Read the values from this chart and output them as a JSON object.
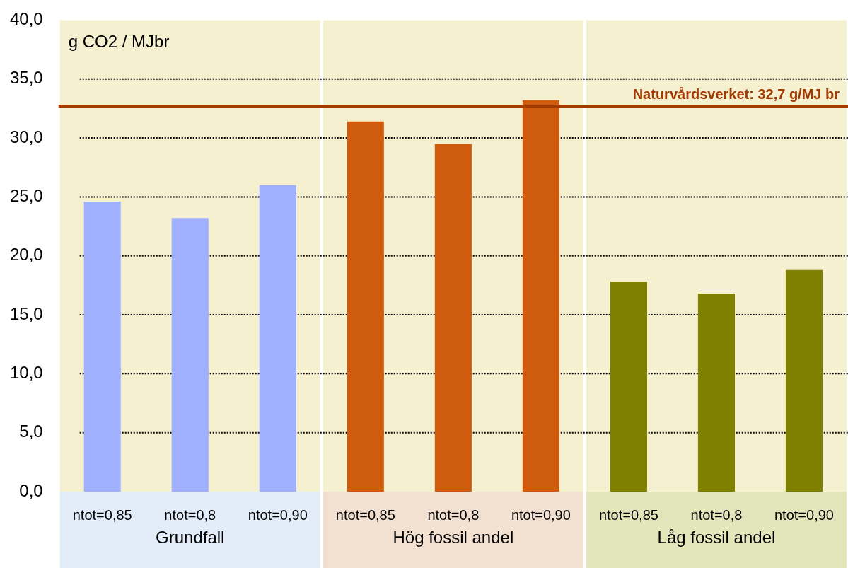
{
  "chart_data": {
    "type": "bar",
    "ylabel": "g CO2 / MJbr",
    "categories": [
      "ntot=0,85",
      "ntot=0,8",
      "ntot=0,90",
      "ntot=0,85",
      "ntot=0,8",
      "ntot=0,90",
      "ntot=0,85",
      "ntot=0,8",
      "ntot=0,90"
    ],
    "values": [
      24.6,
      23.2,
      26.0,
      31.4,
      29.5,
      33.2,
      17.8,
      16.8,
      18.8
    ],
    "colors": [
      "#a0b0ff",
      "#a0b0ff",
      "#a0b0ff",
      "#cf5c0e",
      "#cf5c0e",
      "#cf5c0e",
      "#808000",
      "#808000",
      "#808000"
    ],
    "ylim": [
      0,
      40
    ],
    "yticks": [
      {
        "value": 0,
        "label": "0,0"
      },
      {
        "value": 5,
        "label": "5,0"
      },
      {
        "value": 10,
        "label": "10,0"
      },
      {
        "value": 15,
        "label": "15,0"
      },
      {
        "value": 20,
        "label": "20,0"
      },
      {
        "value": 25,
        "label": "25,0"
      },
      {
        "value": 30,
        "label": "30,0"
      },
      {
        "value": 35,
        "label": "35,0"
      },
      {
        "value": 40,
        "label": "40,0"
      }
    ],
    "grid": "y",
    "ref_lines": [
      {
        "axis": "y",
        "value": 32.7,
        "label": "Naturvårdsverket: 32,7 g/MJ br",
        "color": "#a33a00"
      }
    ],
    "annotations": [
      "Grundfall",
      "Hög fossil andel",
      "Låg fossil andel"
    ]
  }
}
